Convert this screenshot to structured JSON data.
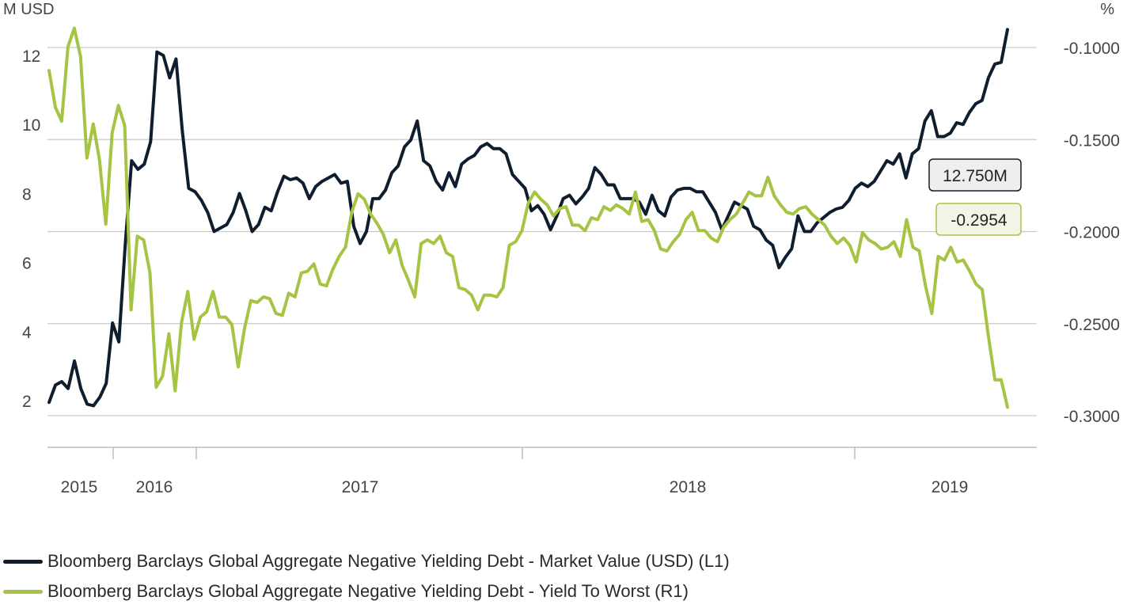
{
  "chart_data": {
    "type": "line",
    "left_axis_unit": "M USD",
    "right_axis_unit": "%",
    "left_ylim": [
      1.2,
      13.5
    ],
    "right_ylim": [
      -0.3,
      -0.1
    ],
    "left_ticks": [
      2,
      4,
      6,
      8,
      10,
      12
    ],
    "left_tick_labels": [
      "2",
      "4",
      "6",
      "8",
      "10",
      "12"
    ],
    "right_ticks": [
      -0.3,
      -0.25,
      -0.2,
      -0.15,
      -0.1
    ],
    "right_tick_labels": [
      "-0.3000",
      "-0.2500",
      "-0.2000",
      "-0.1500",
      "-0.1000"
    ],
    "x_tick_labels": [
      "2015",
      "2016",
      "2017",
      "2018",
      "2019"
    ],
    "grid": "horizontal",
    "legend_position": "bottom",
    "series": [
      {
        "name": "Bloomberg Barclays Global Aggregate Negative Yielding Debt - Market Value (USD) (L1)",
        "axis": "left",
        "color": "#0f1e2e",
        "last_value_label": "12.750M",
        "values": [
          1.95,
          2.45,
          2.55,
          2.35,
          3.15,
          2.35,
          1.9,
          1.85,
          2.1,
          2.5,
          4.25,
          3.7,
          6.5,
          8.95,
          8.7,
          8.85,
          9.5,
          12.1,
          12.0,
          11.35,
          11.9,
          9.8,
          8.15,
          8.05,
          7.8,
          7.45,
          6.9,
          7.0,
          7.1,
          7.45,
          8.0,
          7.5,
          6.9,
          7.1,
          7.6,
          7.5,
          8.05,
          8.5,
          8.4,
          8.45,
          8.3,
          7.85,
          8.2,
          8.35,
          8.45,
          8.55,
          8.3,
          8.35,
          7.05,
          6.55,
          6.9,
          7.85,
          7.85,
          8.1,
          8.6,
          8.8,
          9.35,
          9.55,
          10.1,
          8.95,
          8.8,
          8.35,
          8.1,
          8.6,
          8.2,
          8.85,
          9.0,
          9.1,
          9.35,
          9.45,
          9.3,
          9.3,
          9.15,
          8.55,
          8.35,
          8.15,
          7.5,
          7.65,
          7.4,
          6.95,
          7.35,
          7.85,
          7.95,
          7.7,
          7.9,
          8.15,
          8.75,
          8.55,
          8.25,
          8.25,
          7.85,
          7.85,
          7.85,
          7.75,
          7.4,
          7.95,
          7.5,
          7.35,
          7.9,
          8.1,
          8.15,
          8.15,
          8.05,
          8.05,
          7.75,
          7.45,
          6.95,
          7.35,
          7.75,
          7.65,
          7.55,
          7.05,
          6.95,
          6.65,
          6.5,
          5.85,
          6.15,
          6.4,
          7.35,
          6.9,
          6.9,
          7.15,
          7.3,
          7.45,
          7.55,
          7.6,
          7.8,
          8.15,
          8.3,
          8.2,
          8.35,
          8.65,
          8.95,
          8.85,
          9.15,
          8.45,
          9.15,
          9.3,
          10.1,
          10.4,
          9.65,
          9.65,
          9.75,
          10.05,
          10.0,
          10.35,
          10.6,
          10.7,
          11.35,
          11.75,
          11.8,
          12.75
        ]
      },
      {
        "name": "Bloomberg Barclays Global Aggregate Negative Yielding Debt - Yield To Worst (R1)",
        "axis": "right",
        "color": "#a6c444",
        "last_value_label": "-0.2954",
        "values": [
          -0.1125,
          -0.1325,
          -0.14,
          -0.0995,
          -0.0895,
          -0.105,
          -0.16,
          -0.1415,
          -0.161,
          -0.196,
          -0.1465,
          -0.1315,
          -0.1425,
          -0.2425,
          -0.2025,
          -0.2045,
          -0.2225,
          -0.2845,
          -0.2785,
          -0.2555,
          -0.2865,
          -0.2495,
          -0.2325,
          -0.2585,
          -0.2465,
          -0.2435,
          -0.2325,
          -0.2465,
          -0.2465,
          -0.2505,
          -0.2735,
          -0.2525,
          -0.2375,
          -0.2385,
          -0.2355,
          -0.2365,
          -0.2445,
          -0.2455,
          -0.2335,
          -0.2355,
          -0.2225,
          -0.2215,
          -0.2175,
          -0.2285,
          -0.2295,
          -0.2205,
          -0.2135,
          -0.2085,
          -0.1895,
          -0.1795,
          -0.1825,
          -0.1905,
          -0.1955,
          -0.2015,
          -0.2115,
          -0.2045,
          -0.2185,
          -0.2265,
          -0.2355,
          -0.2065,
          -0.2045,
          -0.2065,
          -0.2025,
          -0.2115,
          -0.2135,
          -0.2305,
          -0.2315,
          -0.2345,
          -0.2425,
          -0.2345,
          -0.2345,
          -0.2355,
          -0.2305,
          -0.2075,
          -0.2055,
          -0.1995,
          -0.1845,
          -0.1785,
          -0.1825,
          -0.1855,
          -0.1915,
          -0.1875,
          -0.1865,
          -0.1965,
          -0.1965,
          -0.1995,
          -0.1925,
          -0.1935,
          -0.1865,
          -0.1885,
          -0.1855,
          -0.1875,
          -0.1905,
          -0.1785,
          -0.1945,
          -0.1935,
          -0.1995,
          -0.2095,
          -0.2105,
          -0.2055,
          -0.2015,
          -0.1935,
          -0.1895,
          -0.1995,
          -0.1995,
          -0.2035,
          -0.2055,
          -0.1975,
          -0.1935,
          -0.1905,
          -0.1845,
          -0.1785,
          -0.1805,
          -0.1805,
          -0.1705,
          -0.1805,
          -0.1855,
          -0.1895,
          -0.1905,
          -0.1875,
          -0.1865,
          -0.1905,
          -0.1935,
          -0.1965,
          -0.2025,
          -0.2065,
          -0.2035,
          -0.2075,
          -0.2165,
          -0.2005,
          -0.2045,
          -0.2065,
          -0.2095,
          -0.2085,
          -0.2055,
          -0.2135,
          -0.1935,
          -0.2085,
          -0.2105,
          -0.2295,
          -0.2445,
          -0.2135,
          -0.2155,
          -0.2085,
          -0.2165,
          -0.2155,
          -0.2215,
          -0.2285,
          -0.2315,
          -0.2575,
          -0.2805,
          -0.2805,
          -0.2954
        ]
      }
    ]
  },
  "legend": {
    "items": [
      {
        "label": "Bloomberg Barclays Global Aggregate Negative Yielding Debt - Market Value (USD) (L1)",
        "color": "#0f1e2e"
      },
      {
        "label": "Bloomberg Barclays Global Aggregate Negative Yielding Debt - Yield To Worst (R1)",
        "color": "#a6c444"
      }
    ]
  }
}
